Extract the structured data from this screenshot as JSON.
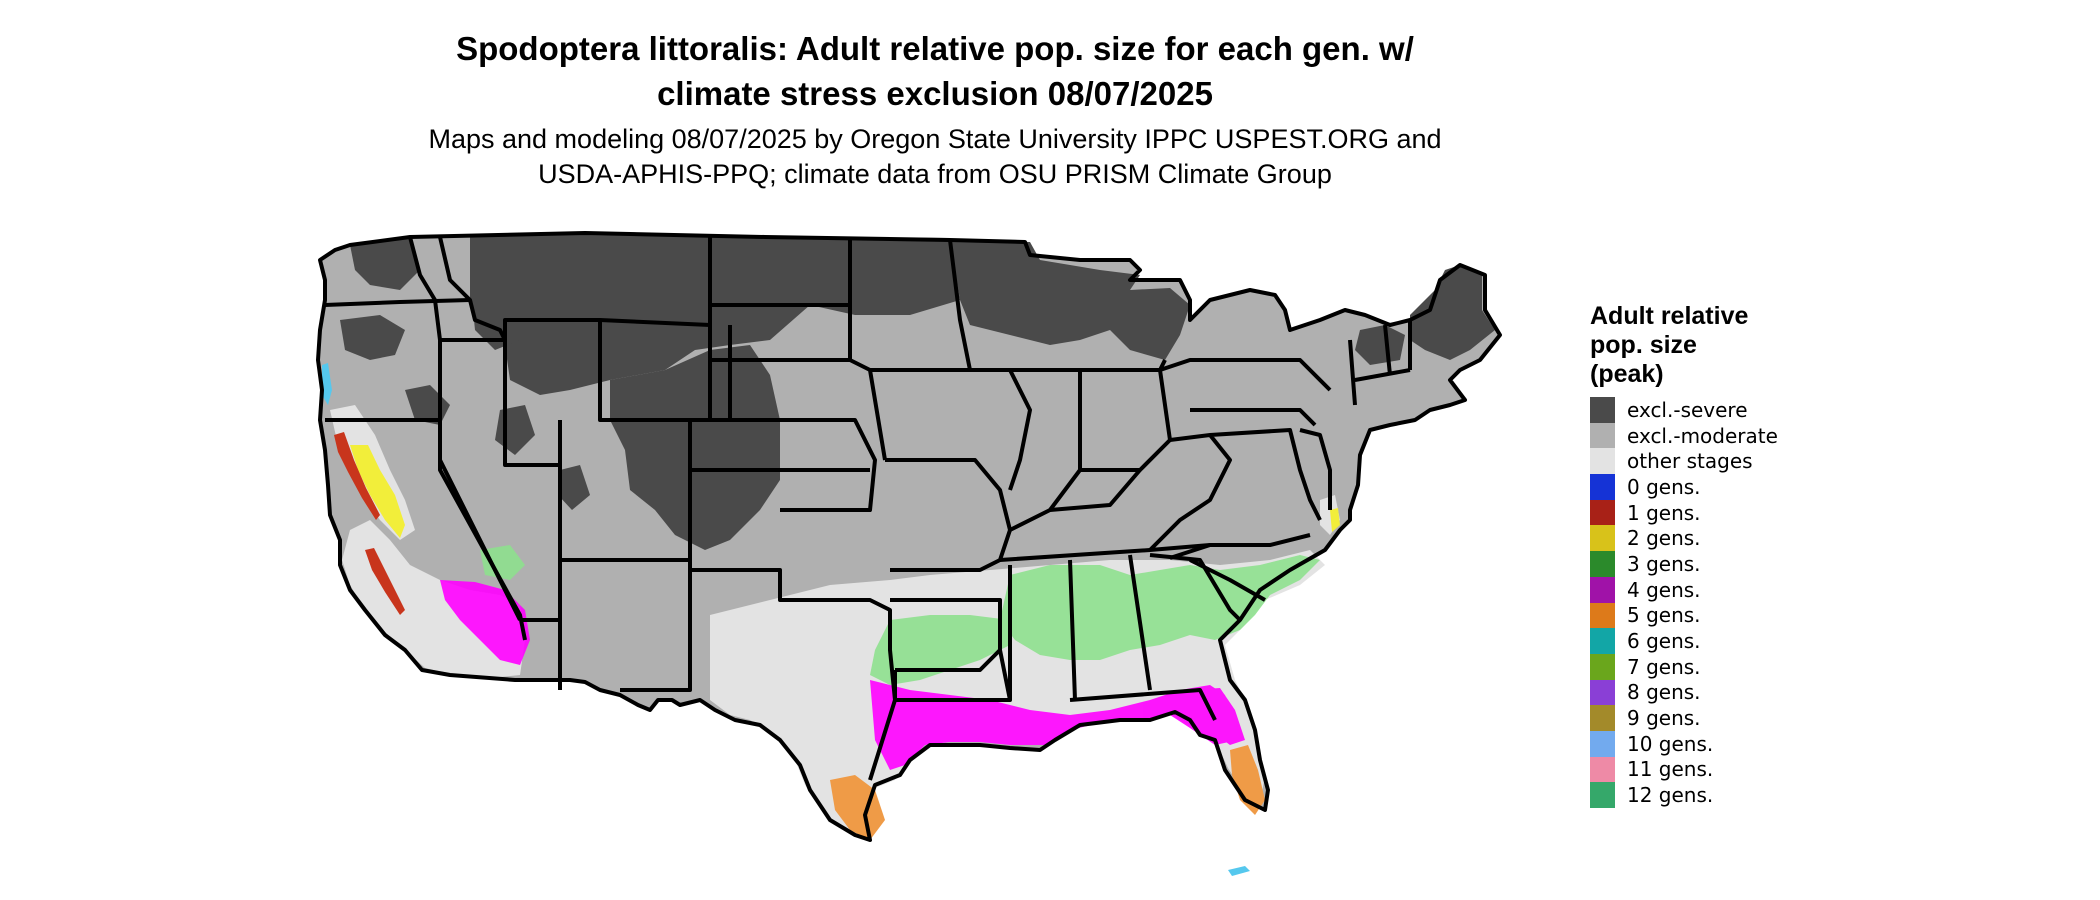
{
  "title": {
    "line1": "Spodoptera littoralis: Adult relative pop. size for each gen. w/",
    "line2": "climate stress exclusion 08/07/2025"
  },
  "subtitle": {
    "line1": "Maps and modeling 08/07/2025 by Oregon State University IPPC USPEST.ORG and",
    "line2": "USDA-APHIS-PPQ; climate data from OSU PRISM Climate Group"
  },
  "legend": {
    "title_line1": "Adult relative",
    "title_line2": "pop. size",
    "title_line3": "(peak)",
    "items": [
      {
        "label": "excl.-severe",
        "color": "#4a4a4a"
      },
      {
        "label": "excl.-moderate",
        "color": "#b0b0b0"
      },
      {
        "label": "other stages",
        "color": "#e3e3e3"
      },
      {
        "label": "0 gens.",
        "color": "#1533d6"
      },
      {
        "label": "1 gens.",
        "color": "#a82117"
      },
      {
        "label": "2 gens.",
        "color": "#d8c21a"
      },
      {
        "label": "3 gens.",
        "color": "#2b8a2b"
      },
      {
        "label": "4 gens.",
        "color": "#a012a8"
      },
      {
        "label": "5 gens.",
        "color": "#dd7a1a"
      },
      {
        "label": "6 gens.",
        "color": "#12a6a6"
      },
      {
        "label": "7 gens.",
        "color": "#6aa61c"
      },
      {
        "label": "8 gens.",
        "color": "#8a3fd6"
      },
      {
        "label": "9 gens.",
        "color": "#a38a2a"
      },
      {
        "label": "10 gens.",
        "color": "#72aaee"
      },
      {
        "label": "11 gens.",
        "color": "#ee8aa6"
      },
      {
        "label": "12 gens.",
        "color": "#35a86a"
      }
    ]
  },
  "map_colors": {
    "border": "#000000",
    "excl_severe": "#4a4a4a",
    "excl_moderate": "#b0b0b0",
    "other_stages": "#e3e3e3",
    "gens_2_yellow": "#f2ee3a",
    "gens_1_red": "#c8351c",
    "gens_4_magenta": "#ff00ff",
    "gens_5_orange": "#ef9b47",
    "gens_12_green": "#8ee08e",
    "gens_10_cyan": "#55c8ee"
  }
}
